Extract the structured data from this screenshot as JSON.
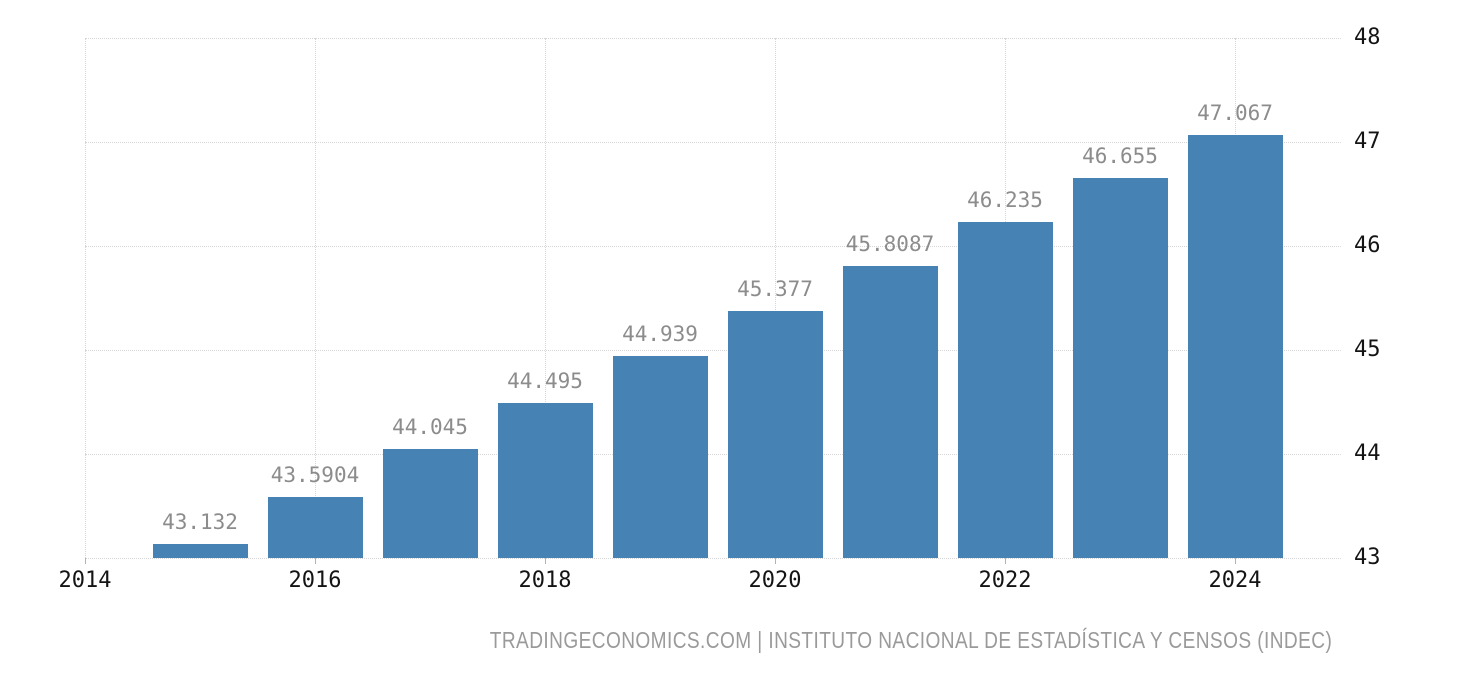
{
  "chart_data": {
    "type": "bar",
    "title": "",
    "xlabel": "",
    "ylabel": "",
    "x": [
      2015,
      2016,
      2017,
      2018,
      2019,
      2020,
      2021,
      2022,
      2023,
      2024
    ],
    "values": [
      43.132,
      43.5904,
      44.045,
      44.495,
      44.939,
      45.377,
      45.8087,
      46.235,
      46.655,
      47.067
    ],
    "bar_labels": [
      "43.132",
      "43.5904",
      "44.045",
      "44.495",
      "44.939",
      "45.377",
      "45.8087",
      "46.235",
      "46.655",
      "47.067"
    ],
    "xticks": [
      2014,
      2016,
      2018,
      2020,
      2022,
      2024
    ],
    "xtick_labels": [
      "2014",
      "2016",
      "2018",
      "2020",
      "2022",
      "2024"
    ],
    "yticks": [
      43,
      44,
      45,
      46,
      47,
      48
    ],
    "ytick_labels": [
      "43",
      "44",
      "45",
      "46",
      "47",
      "48"
    ],
    "xlim": [
      2014,
      2024.92
    ],
    "ylim": [
      43,
      48
    ],
    "grid": "dotted",
    "legend": "none",
    "y_axis_position": "right",
    "colors": {
      "bar": "#4682b4",
      "bar_label": "#8c8c8c",
      "axis_text": "#141414",
      "gridline": "#d6d6d6",
      "tick_mark": "#b3b3b3",
      "footer_text": "#9a9a9a",
      "background": "#ffffff"
    }
  },
  "footer": {
    "text": "TRADINGECONOMICS.COM | INSTITUTO NACIONAL DE ESTADÍSTICA Y CENSOS (INDEC)"
  }
}
